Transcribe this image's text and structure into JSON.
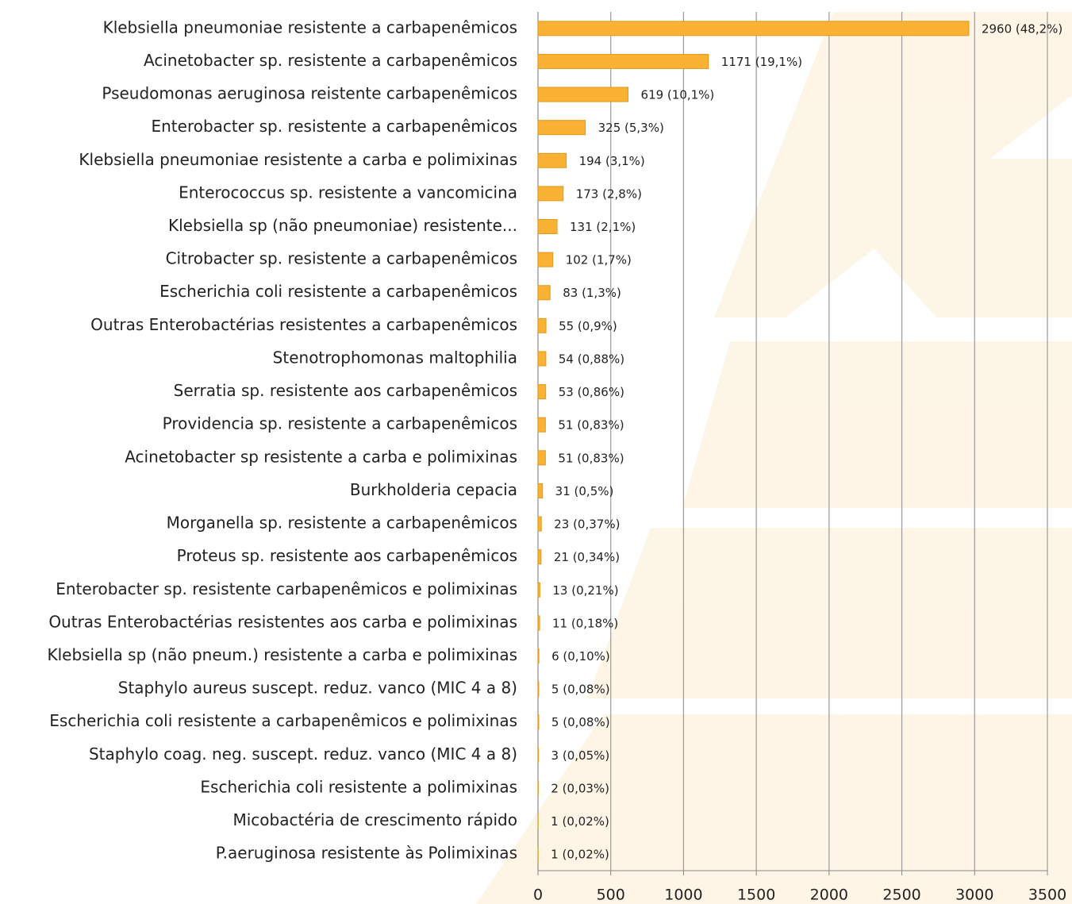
{
  "chart_data": {
    "type": "bar",
    "orientation": "horizontal",
    "categories": [
      "Klebsiella pneumoniae resistente a carbapenêmicos",
      "Acinetobacter sp. resistente a carbapenêmicos",
      "Pseudomonas aeruginosa reistente carbapenêmicos",
      "Enterobacter sp. resistente a carbapenêmicos",
      "Klebsiella pneumoniae resistente a carba e polimixinas",
      "Enterococcus sp. resistente a vancomicina",
      "Klebsiella sp (não pneumoniae) resistente...",
      "Citrobacter sp. resistente a carbapenêmicos",
      "Escherichia coli resistente a carbapenêmicos",
      "Outras Enterobactérias resistentes a carbapenêmicos",
      "Stenotrophomonas maltophilia",
      "Serratia sp. resistente aos carbapenêmicos",
      "Providencia sp. resistente a carbapenêmicos",
      "Acinetobacter sp resistente a carba e polimixinas",
      "Burkholderia cepacia",
      "Morganella sp. resistente a carbapenêmicos",
      "Proteus sp. resistente aos carbapenêmicos",
      "Enterobacter sp. resistente carbapenêmicos e polimixinas",
      "Outras Enterobactérias resistentes aos carba e polimixinas",
      "Klebsiella sp (não pneum.) resistente a carba e polimixinas",
      "Staphylo aureus suscept. reduz. vanco (MIC 4 a 8)",
      "Escherichia coli resistente a carbapenêmicos e polimixinas",
      "Staphylo coag. neg. suscept. reduz. vanco (MIC 4 a 8)",
      "Escherichia coli resistente a polimixinas",
      "Micobactéria de crescimento rápido",
      "P.aeruginosa resistente às Polimixinas"
    ],
    "values": [
      2960,
      1171,
      619,
      325,
      194,
      173,
      131,
      102,
      83,
      55,
      54,
      53,
      51,
      51,
      31,
      23,
      21,
      13,
      11,
      6,
      5,
      5,
      3,
      2,
      1,
      1
    ],
    "value_labels": [
      "2960 (48,2%)",
      "1171 (19,1%)",
      "619 (10,1%)",
      "325 (5,3%)",
      "194 (3,1%)",
      "173  (2,8%)",
      "131  (2,1%)",
      "102 (1,7%)",
      "83 (1,3%)",
      "55 (0,9%)",
      "54 (0,88%)",
      "53 (0,86%)",
      "51 (0,83%)",
      "51 (0,83%)",
      "31 (0,5%)",
      "23 (0,37%)",
      "21 (0,34%)",
      "13 (0,21%)",
      "11 (0,18%)",
      "6 (0,10%)",
      "5 (0,08%)",
      "5 (0,08%)",
      "3 (0,05%)",
      "2 (0,03%)",
      "1 (0,02%)",
      "1 (0,02%)"
    ],
    "color": "#f9b233",
    "xlim": [
      0,
      3500
    ],
    "xticks": [
      0,
      500,
      1000,
      1500,
      2000,
      2500,
      3000,
      3500
    ],
    "grid": true
  }
}
